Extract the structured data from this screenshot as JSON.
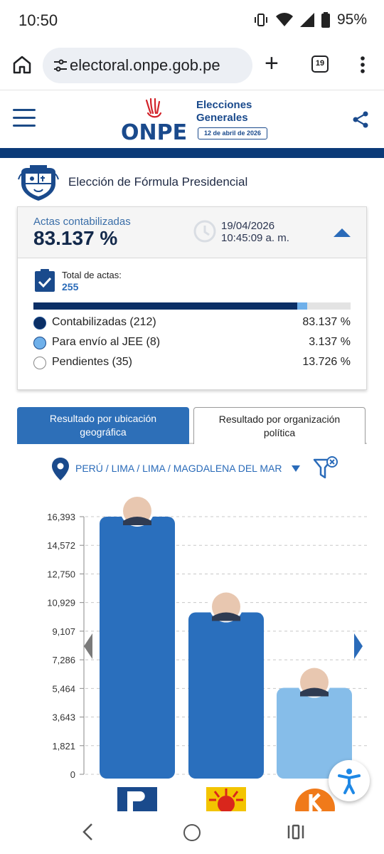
{
  "status": {
    "time": "10:50",
    "battery": "95%"
  },
  "browser": {
    "url": "electoral.onpe.gob.pe",
    "tab_count": "19"
  },
  "header": {
    "logo_text": "ONPE",
    "title_line1": "Elecciones",
    "title_line2": "Generales",
    "date_badge": "12 de abril de 2026"
  },
  "section": {
    "title": "Elección de Fórmula Presidencial"
  },
  "summary": {
    "actas_label": "Actas contabilizadas",
    "actas_pct": "83.137 %",
    "date": "19/04/2026",
    "time": "10:45:09 a. m.",
    "total_label": "Total de actas:",
    "total_value": "255",
    "progress": {
      "contabilizadas": 0.83137,
      "jee": 0.03137
    },
    "legend": [
      {
        "label": "Contabilizadas (212)",
        "value": "83.137 %",
        "color": "#0b2f66"
      },
      {
        "label": "Para envío al JEE (8)",
        "value": "3.137 %",
        "color": "#6fb0ea"
      },
      {
        "label": "Pendientes (35)",
        "value": "13.726 %",
        "color": "#ffffff"
      }
    ]
  },
  "tabs": [
    {
      "line1": "Resultado por ubicación",
      "line2": "geográfica"
    },
    {
      "line1": "Resultado por organización",
      "line2": "política"
    }
  ],
  "location": {
    "path": "PERÚ / LIMA / LIMA / MAGDALENA DEL MAR"
  },
  "chart_data": {
    "type": "bar",
    "yticks": [
      "16,393",
      "14,572",
      "12,750",
      "10,929",
      "9,107",
      "7,286",
      "5,464",
      "3,643",
      "1,821",
      "0"
    ],
    "ylim": [
      0,
      16393
    ],
    "values": [
      16393,
      10300,
      5500
    ],
    "colors": [
      "#2a6fbd",
      "#2a6fbd",
      "#86bde9"
    ],
    "grid": true
  },
  "colors": {
    "brand": "#1a4a8c",
    "accent": "#2a6bb9",
    "stripe": "#0b3a78"
  }
}
